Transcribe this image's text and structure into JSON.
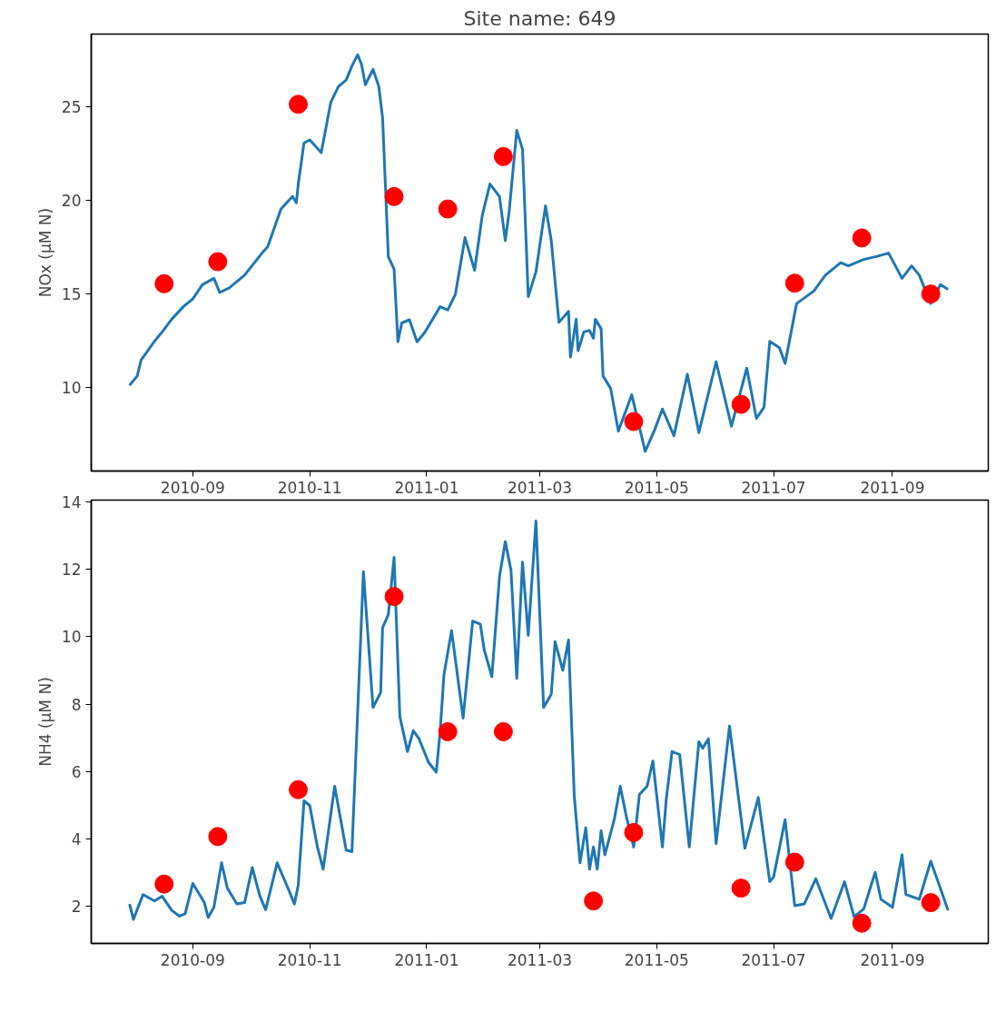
{
  "chart_data": [
    {
      "type": "line",
      "title": "Site name: 649",
      "ylabel": "NOx (μM N)",
      "xlim": [
        "2010-07-10",
        "2011-10-21"
      ],
      "xticks": [
        "2010-09",
        "2010-11",
        "2011-01",
        "2011-03",
        "2011-05",
        "2011-07",
        "2011-09"
      ],
      "ylim": [
        5.5,
        28.9
      ],
      "yticks": [
        10,
        15,
        20,
        25
      ],
      "series": [
        {
          "color": "#1f77b4",
          "x": [
            "2010-07-30",
            "2010-08-03",
            "2010-08-05",
            "2010-08-12",
            "2010-08-16",
            "2010-08-21",
            "2010-08-27",
            "2010-09-01",
            "2010-09-06",
            "2010-09-12",
            "2010-09-15",
            "2010-09-20",
            "2010-09-28",
            "2010-10-07",
            "2010-10-10",
            "2010-10-17",
            "2010-10-23",
            "2010-10-25",
            "2010-10-26",
            "2010-10-29",
            "2010-11-01",
            "2010-11-07",
            "2010-11-12",
            "2010-11-16",
            "2010-11-20",
            "2010-11-23",
            "2010-11-26",
            "2010-11-28",
            "2010-11-30",
            "2010-12-04",
            "2010-12-07",
            "2010-12-09",
            "2010-12-12",
            "2010-12-15",
            "2010-12-17",
            "2010-12-19",
            "2010-12-23",
            "2010-12-27",
            "2010-12-31",
            "2011-01-08",
            "2011-01-12",
            "2011-01-16",
            "2011-01-21",
            "2011-01-26",
            "2011-01-30",
            "2011-02-03",
            "2011-02-08",
            "2011-02-11",
            "2011-02-13",
            "2011-02-17",
            "2011-02-20",
            "2011-02-23",
            "2011-02-27",
            "2011-03-04",
            "2011-03-07",
            "2011-03-11",
            "2011-03-16",
            "2011-03-17",
            "2011-03-20",
            "2011-03-21",
            "2011-03-24",
            "2011-03-27",
            "2011-03-29",
            "2011-03-30",
            "2011-04-02",
            "2011-04-03",
            "2011-04-07",
            "2011-04-11",
            "2011-04-18",
            "2011-04-25",
            "2011-04-30",
            "2011-05-04",
            "2011-05-10",
            "2011-05-17",
            "2011-05-23",
            "2011-06-01",
            "2011-06-09",
            "2011-06-17",
            "2011-06-22",
            "2011-06-26",
            "2011-06-29",
            "2011-07-04",
            "2011-07-07",
            "2011-07-13",
            "2011-07-22",
            "2011-07-28",
            "2011-08-05",
            "2011-08-09",
            "2011-08-17",
            "2011-08-24",
            "2011-08-30",
            "2011-09-06",
            "2011-09-11",
            "2011-09-15",
            "2011-09-21",
            "2011-09-26",
            "2011-09-30"
          ],
          "values": [
            10.09,
            10.59,
            11.44,
            12.45,
            12.95,
            13.63,
            14.3,
            14.72,
            15.48,
            15.82,
            15.06,
            15.31,
            15.99,
            17.16,
            17.5,
            19.53,
            20.2,
            19.86,
            20.87,
            23.06,
            23.23,
            22.55,
            25.26,
            26.1,
            26.44,
            27.19,
            27.79,
            27.28,
            26.19,
            27.01,
            26.1,
            24.42,
            16.98,
            16.31,
            12.42,
            13.43,
            13.6,
            12.42,
            12.92,
            14.3,
            14.13,
            14.97,
            18.0,
            16.25,
            19.19,
            20.87,
            20.2,
            17.84,
            19.36,
            23.74,
            22.73,
            14.84,
            16.16,
            19.7,
            17.84,
            13.46,
            14.05,
            11.6,
            13.63,
            11.94,
            12.95,
            13.03,
            12.61,
            13.63,
            13.12,
            10.59,
            9.92,
            7.64,
            9.58,
            6.55,
            7.72,
            8.82,
            7.39,
            10.68,
            7.56,
            11.35,
            7.9,
            11.01,
            8.32,
            8.91,
            12.45,
            12.11,
            11.26,
            14.47,
            15.14,
            15.99,
            16.66,
            16.49,
            16.83,
            17.0,
            17.17,
            15.82,
            16.49,
            15.99,
            14.47,
            15.48,
            15.23
          ]
        },
        {
          "type": "scatter",
          "color": "#ff0000",
          "marker": "circle",
          "x": [
            "2010-08-17",
            "2010-09-14",
            "2010-10-26",
            "2010-12-15",
            "2011-01-12",
            "2011-02-10",
            "2011-04-19",
            "2011-06-14",
            "2011-07-12",
            "2011-08-16",
            "2011-09-21"
          ],
          "values": [
            15.53,
            16.71,
            25.14,
            20.2,
            19.53,
            22.34,
            8.15,
            9.07,
            15.56,
            17.98,
            14.98
          ]
        }
      ]
    },
    {
      "type": "line",
      "ylabel": "NH4 (μM N)",
      "xlim": [
        "2010-07-10",
        "2011-10-21"
      ],
      "xticks": [
        "2010-09",
        "2010-11",
        "2011-01",
        "2011-03",
        "2011-05",
        "2011-07",
        "2011-09"
      ],
      "ylim": [
        0.9,
        14.05
      ],
      "yticks": [
        2,
        4,
        6,
        8,
        10,
        12,
        14
      ],
      "series": [
        {
          "color": "#1f77b4",
          "x": [
            "2010-07-30",
            "2010-08-01",
            "2010-08-06",
            "2010-08-12",
            "2010-08-16",
            "2010-08-21",
            "2010-08-25",
            "2010-08-28",
            "2010-09-01",
            "2010-09-07",
            "2010-09-09",
            "2010-09-12",
            "2010-09-16",
            "2010-09-19",
            "2010-09-24",
            "2010-09-28",
            "2010-10-02",
            "2010-10-06",
            "2010-10-09",
            "2010-10-15",
            "2010-10-21",
            "2010-10-24",
            "2010-10-26",
            "2010-10-29",
            "2010-11-01",
            "2010-11-05",
            "2010-11-08",
            "2010-11-14",
            "2010-11-20",
            "2010-11-23",
            "2010-11-29",
            "2010-12-04",
            "2010-12-08",
            "2010-12-09",
            "2010-12-12",
            "2010-12-15",
            "2010-12-18",
            "2010-12-22",
            "2010-12-25",
            "2010-12-28",
            "2011-01-02",
            "2011-01-06",
            "2011-01-08",
            "2011-01-10",
            "2011-01-14",
            "2011-01-20",
            "2011-01-25",
            "2011-01-29",
            "2011-01-31",
            "2011-02-04",
            "2011-02-08",
            "2011-02-11",
            "2011-02-14",
            "2011-02-17",
            "2011-02-20",
            "2011-02-23",
            "2011-02-27",
            "2011-03-03",
            "2011-03-07",
            "2011-03-09",
            "2011-03-13",
            "2011-03-16",
            "2011-03-19",
            "2011-03-22",
            "2011-03-25",
            "2011-03-27",
            "2011-03-29",
            "2011-03-31",
            "2011-04-02",
            "2011-04-04",
            "2011-04-09",
            "2011-04-12",
            "2011-04-15",
            "2011-04-19",
            "2011-04-22",
            "2011-04-26",
            "2011-04-29",
            "2011-05-04",
            "2011-05-06",
            "2011-05-09",
            "2011-05-13",
            "2011-05-18",
            "2011-05-23",
            "2011-05-25",
            "2011-05-28",
            "2011-06-01",
            "2011-06-08",
            "2011-06-16",
            "2011-06-23",
            "2011-06-29",
            "2011-07-01",
            "2011-07-07",
            "2011-07-12",
            "2011-07-17",
            "2011-07-23",
            "2011-07-31",
            "2011-08-07",
            "2011-08-12",
            "2011-08-17",
            "2011-08-23",
            "2011-08-26",
            "2011-09-01",
            "2011-09-06",
            "2011-09-08",
            "2011-09-15",
            "2011-09-21",
            "2011-09-26",
            "2011-09-30"
          ],
          "values": [
            2.07,
            1.61,
            2.35,
            2.16,
            2.3,
            1.88,
            1.71,
            1.78,
            2.68,
            2.11,
            1.67,
            1.97,
            3.29,
            2.54,
            2.07,
            2.11,
            3.15,
            2.3,
            1.9,
            3.29,
            2.49,
            2.07,
            2.63,
            5.13,
            4.99,
            3.76,
            3.1,
            5.56,
            3.67,
            3.62,
            11.93,
            7.9,
            8.34,
            10.27,
            10.65,
            12.35,
            7.63,
            6.59,
            7.21,
            6.97,
            6.27,
            5.98,
            7.16,
            8.86,
            10.18,
            7.58,
            10.46,
            10.37,
            9.61,
            8.81,
            11.78,
            12.82,
            11.97,
            8.76,
            12.21,
            10.04,
            13.43,
            7.9,
            8.29,
            9.85,
            9.0,
            9.9,
            5.27,
            3.29,
            4.33,
            3.1,
            3.76,
            3.1,
            4.24,
            3.53,
            4.61,
            5.56,
            4.71,
            3.76,
            5.32,
            5.56,
            6.31,
            3.76,
            5.18,
            6.59,
            6.5,
            3.76,
            6.88,
            6.69,
            6.97,
            3.86,
            7.35,
            3.72,
            5.23,
            2.73,
            2.87,
            4.57,
            2.02,
            2.07,
            2.82,
            1.64,
            2.73,
            1.69,
            1.92,
            3.01,
            2.21,
            1.97,
            3.53,
            2.35,
            2.21,
            3.34,
            2.54,
            1.88
          ]
        },
        {
          "type": "scatter",
          "color": "#ff0000",
          "marker": "circle",
          "x": [
            "2010-08-17",
            "2010-09-14",
            "2010-10-26",
            "2010-12-15",
            "2011-01-12",
            "2011-02-10",
            "2011-03-29",
            "2011-04-19",
            "2011-06-14",
            "2011-07-12",
            "2011-08-16",
            "2011-09-21"
          ],
          "values": [
            2.66,
            4.07,
            5.46,
            11.19,
            7.18,
            7.18,
            2.16,
            4.19,
            2.54,
            3.31,
            1.5,
            2.11
          ]
        }
      ]
    }
  ]
}
